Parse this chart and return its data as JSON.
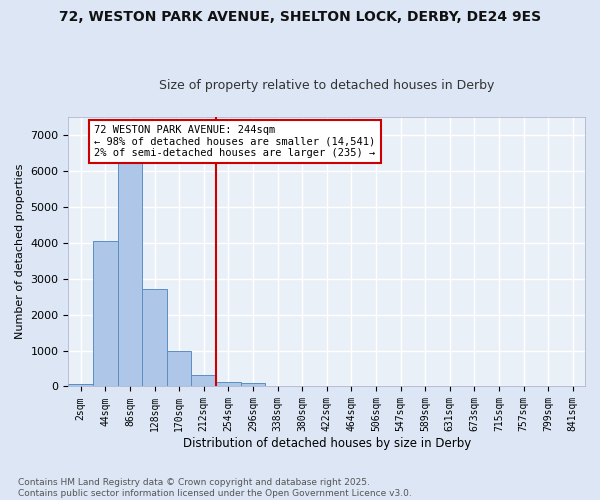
{
  "title_line1": "72, WESTON PARK AVENUE, SHELTON LOCK, DERBY, DE24 9ES",
  "title_line2": "Size of property relative to detached houses in Derby",
  "xlabel": "Distribution of detached houses by size in Derby",
  "ylabel": "Number of detached properties",
  "categories": [
    "2sqm",
    "44sqm",
    "86sqm",
    "128sqm",
    "170sqm",
    "212sqm",
    "254sqm",
    "296sqm",
    "338sqm",
    "380sqm",
    "422sqm",
    "464sqm",
    "506sqm",
    "547sqm",
    "589sqm",
    "631sqm",
    "673sqm",
    "715sqm",
    "757sqm",
    "799sqm",
    "841sqm"
  ],
  "bar_values": [
    70,
    4050,
    6650,
    2700,
    975,
    320,
    120,
    90,
    0,
    0,
    0,
    0,
    0,
    0,
    0,
    0,
    0,
    0,
    0,
    0,
    0
  ],
  "bar_color": "#aec6e8",
  "bar_edge_color": "#5b8fc2",
  "vline_pos": 5.5,
  "vline_color": "#cc0000",
  "annotation_text": "72 WESTON PARK AVENUE: 244sqm\n← 98% of detached houses are smaller (14,541)\n2% of semi-detached houses are larger (235) →",
  "annotation_box_facecolor": "#ffffff",
  "annotation_box_edgecolor": "#cc0000",
  "ylim": [
    0,
    7500
  ],
  "yticks": [
    0,
    1000,
    2000,
    3000,
    4000,
    5000,
    6000,
    7000
  ],
  "fig_bg_color": "#dce6f5",
  "plot_bg_color": "#eaf0f8",
  "grid_color": "#ffffff",
  "footnote": "Contains HM Land Registry data © Crown copyright and database right 2025.\nContains public sector information licensed under the Open Government Licence v3.0."
}
